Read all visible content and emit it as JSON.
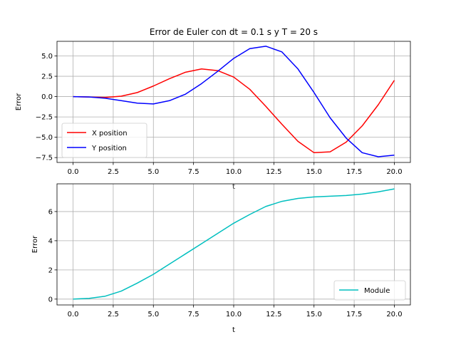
{
  "chart_data": [
    {
      "type": "line",
      "title": "Error de Euler con dt = 0.1 s y T = 20 s",
      "xlabel": "t",
      "ylabel": "Error",
      "xlim": [
        -1,
        21
      ],
      "ylim": [
        -8.1,
        6.8
      ],
      "xticks": [
        "0.0",
        "2.5",
        "5.0",
        "7.5",
        "10.0",
        "12.5",
        "15.0",
        "17.5",
        "20.0"
      ],
      "yticks": [
        "5.0",
        "2.5",
        "0.0",
        "−2.5",
        "−5.0",
        "−7.5"
      ],
      "grid": true,
      "legend": "lower-left",
      "series": [
        {
          "name": "X position",
          "color": "#ff0000",
          "x": [
            0,
            1,
            2,
            3,
            4,
            5,
            6,
            7,
            8,
            9,
            10,
            11,
            12,
            13,
            14,
            15,
            16,
            17,
            18,
            19,
            20
          ],
          "y": [
            0,
            -0.05,
            -0.1,
            0.05,
            0.5,
            1.3,
            2.2,
            3.0,
            3.4,
            3.2,
            2.4,
            0.9,
            -1.2,
            -3.4,
            -5.5,
            -6.9,
            -6.8,
            -5.6,
            -3.6,
            -1.0,
            2.0
          ]
        },
        {
          "name": "Y position",
          "color": "#0000ff",
          "x": [
            0,
            1,
            2,
            3,
            4,
            5,
            6,
            7,
            8,
            9,
            10,
            11,
            12,
            13,
            14,
            15,
            16,
            17,
            18,
            19,
            20
          ],
          "y": [
            0,
            -0.05,
            -0.2,
            -0.5,
            -0.8,
            -0.9,
            -0.5,
            0.3,
            1.6,
            3.1,
            4.7,
            5.9,
            6.2,
            5.5,
            3.4,
            0.5,
            -2.6,
            -5.1,
            -6.9,
            -7.4,
            -7.2
          ]
        }
      ]
    },
    {
      "type": "line",
      "title": "",
      "xlabel": "t",
      "ylabel": "Error",
      "xlim": [
        -1,
        21
      ],
      "ylim": [
        -0.4,
        7.9
      ],
      "xticks": [
        "0.0",
        "2.5",
        "5.0",
        "7.5",
        "10.0",
        "12.5",
        "15.0",
        "17.5",
        "20.0"
      ],
      "yticks": [
        "0",
        "2",
        "4",
        "6"
      ],
      "grid": true,
      "legend": "lower-right",
      "series": [
        {
          "name": "Module",
          "color": "#00bfbf",
          "x": [
            0,
            1,
            2,
            3,
            4,
            5,
            6,
            7,
            8,
            9,
            10,
            11,
            12,
            13,
            14,
            15,
            16,
            17,
            18,
            19,
            20
          ],
          "y": [
            0,
            0.05,
            0.2,
            0.55,
            1.1,
            1.7,
            2.4,
            3.1,
            3.8,
            4.5,
            5.2,
            5.8,
            6.35,
            6.7,
            6.9,
            7.0,
            7.05,
            7.1,
            7.2,
            7.35,
            7.55
          ]
        }
      ]
    }
  ]
}
